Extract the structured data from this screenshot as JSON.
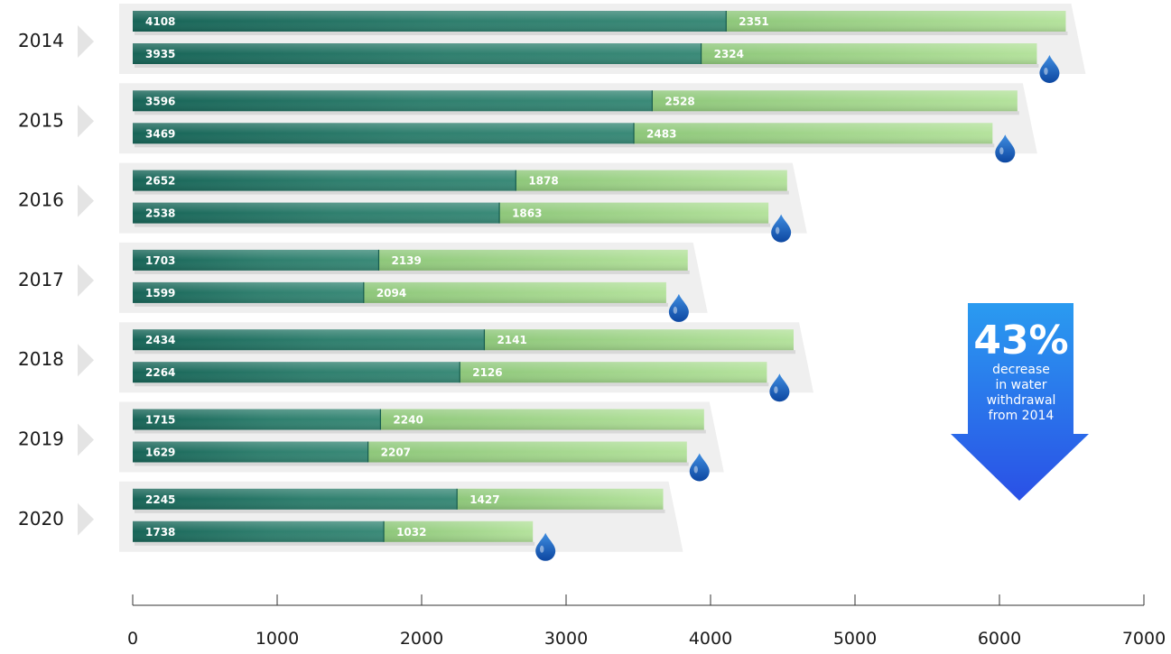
{
  "chart_data": {
    "type": "bar",
    "orientation": "horizontal",
    "stacked": true,
    "categories": [
      "2014",
      "2015",
      "2016",
      "2017",
      "2018",
      "2019",
      "2020"
    ],
    "bars_per_category": 2,
    "series": [
      {
        "name": "",
        "color": "#1f6e5e",
        "values": [
          [
            4108,
            3935
          ],
          [
            3596,
            3469
          ],
          [
            2652,
            2538
          ],
          [
            1703,
            1599
          ],
          [
            2434,
            2264
          ],
          [
            1715,
            1629
          ],
          [
            2245,
            1738
          ]
        ]
      },
      {
        "name": "",
        "color": "#a8d88e",
        "values": [
          [
            2351,
            2324
          ],
          [
            2528,
            2483
          ],
          [
            1878,
            1863
          ],
          [
            2139,
            2094
          ],
          [
            2141,
            2126
          ],
          [
            2240,
            2207
          ],
          [
            1427,
            1032
          ]
        ]
      }
    ],
    "xlim": [
      0,
      7000
    ],
    "xticks": [
      "0",
      "1000",
      "2000",
      "3000",
      "4000",
      "5000",
      "6000",
      "7000"
    ],
    "title": "",
    "xlabel": "",
    "ylabel": "",
    "grid": false,
    "legend": "none",
    "marker_icon": "water-drop-icon",
    "marker_color": "#1565c0"
  },
  "callout": {
    "percent": "43%",
    "lines": [
      "decrease",
      "in water",
      "withdrawal",
      "from 2014"
    ],
    "color_top": "#2a9bf0",
    "color_bottom": "#2a50e6",
    "icon": "down-arrow-icon"
  }
}
